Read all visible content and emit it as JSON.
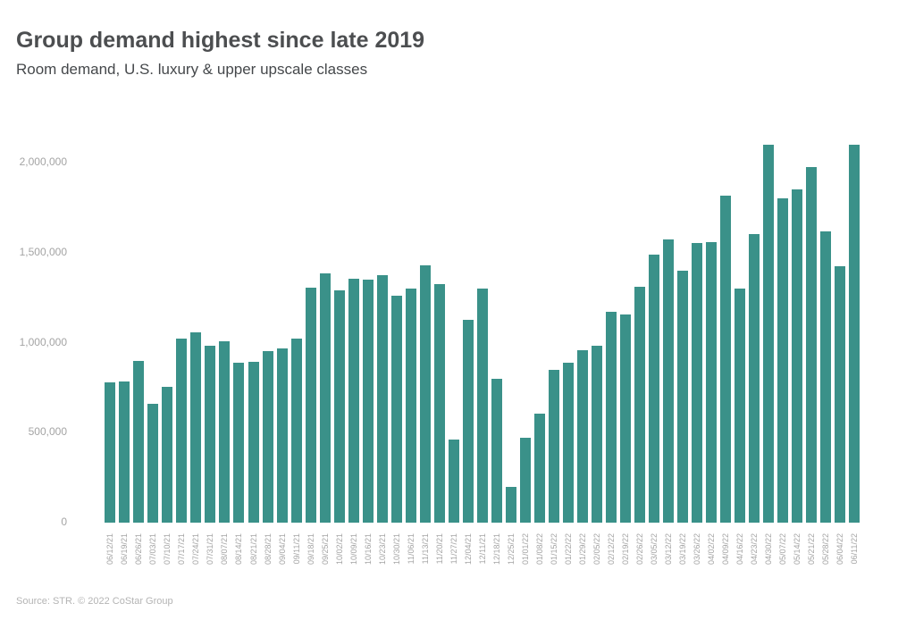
{
  "header": {
    "title": "Group demand highest since late 2019",
    "subtitle": "Room demand, U.S. luxury & upper upscale classes"
  },
  "footer": {
    "source": "Source: STR. © 2022 CoStar Group"
  },
  "colors": {
    "bar": "#3a9189",
    "title_text": "#4c4e50",
    "axis_text": "#a4a4a4",
    "source_text": "#b4b4b4",
    "background": "#ffffff"
  },
  "chart_data": {
    "type": "bar",
    "title": "Group demand highest since late 2019",
    "subtitle": "Room demand, U.S. luxury & upper upscale classes",
    "xlabel": "",
    "ylabel": "",
    "ylim": [
      0,
      2180000
    ],
    "grid": false,
    "legend": "none",
    "yticks": [
      {
        "value": 0,
        "label": "0"
      },
      {
        "value": 500000,
        "label": "500,000"
      },
      {
        "value": 1000000,
        "label": "1,000,000"
      },
      {
        "value": 1500000,
        "label": "1,500,000"
      },
      {
        "value": 2000000,
        "label": "2,000,000"
      }
    ],
    "categories": [
      "06/12/21",
      "06/19/21",
      "06/26/21",
      "07/03/21",
      "07/10/21",
      "07/17/21",
      "07/24/21",
      "07/31/21",
      "08/07/21",
      "08/14/21",
      "08/21/21",
      "08/28/21",
      "09/04/21",
      "09/11/21",
      "09/18/21",
      "09/25/21",
      "10/02/21",
      "10/09/21",
      "10/16/21",
      "10/23/21",
      "10/30/21",
      "11/06/21",
      "11/13/21",
      "11/20/21",
      "11/27/21",
      "12/04/21",
      "12/11/21",
      "12/18/21",
      "12/25/21",
      "01/01/22",
      "01/08/22",
      "01/15/22",
      "01/22/22",
      "01/29/22",
      "02/05/22",
      "02/12/22",
      "02/19/22",
      "02/26/22",
      "03/05/22",
      "03/12/22",
      "03/19/22",
      "03/26/22",
      "04/02/22",
      "04/09/22",
      "04/16/22",
      "04/23/22",
      "04/30/22",
      "05/07/22",
      "05/14/22",
      "05/21/22",
      "05/28/22",
      "06/04/22",
      "06/11/22"
    ],
    "values": [
      780000,
      785000,
      900000,
      660000,
      755000,
      1020000,
      1055000,
      985000,
      1005000,
      890000,
      895000,
      955000,
      970000,
      1020000,
      1305000,
      1385000,
      1290000,
      1355000,
      1350000,
      1375000,
      1260000,
      1300000,
      1430000,
      1325000,
      460000,
      1125000,
      1300000,
      800000,
      200000,
      470000,
      605000,
      850000,
      890000,
      960000,
      985000,
      1170000,
      1155000,
      1310000,
      1490000,
      1575000,
      1400000,
      1555000,
      1560000,
      1815000,
      1300000,
      1605000,
      2100000,
      1800000,
      1850000,
      1975000,
      1620000,
      1425000,
      2100000
    ]
  }
}
